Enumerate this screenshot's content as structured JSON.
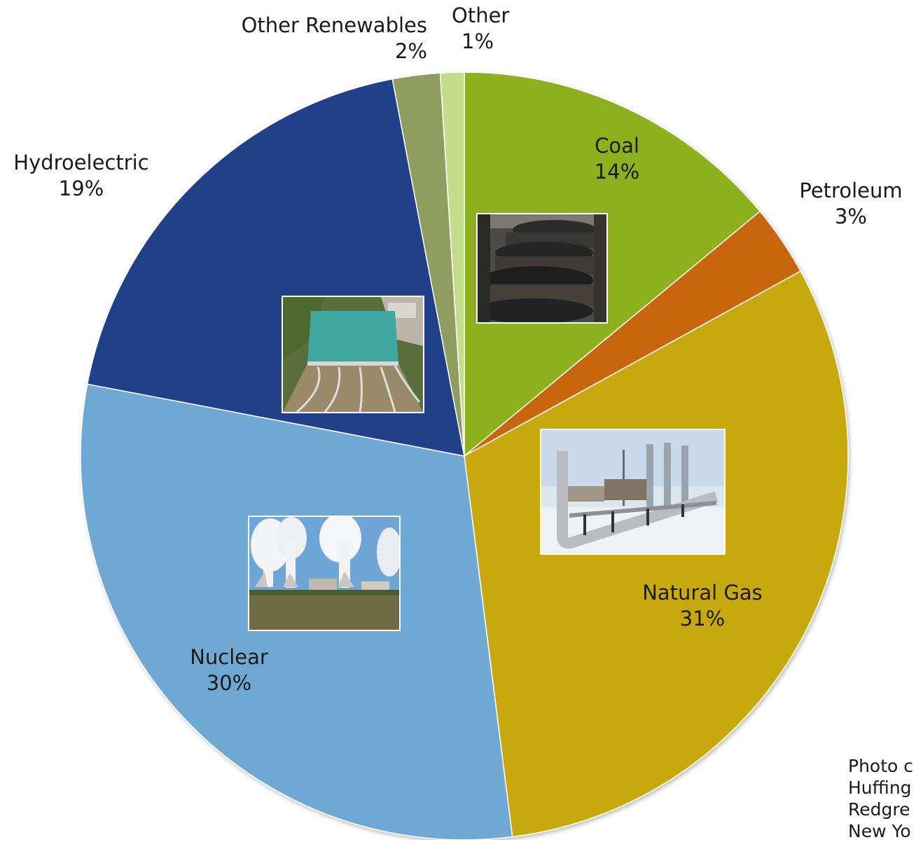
{
  "chart_data": {
    "type": "pie",
    "slices": [
      {
        "label": "Coal",
        "value": 14,
        "display": "14%",
        "color": "#8db01a"
      },
      {
        "label": "Petroleum",
        "value": 3,
        "display": "3%",
        "color": "#c8650d"
      },
      {
        "label": "Natural Gas",
        "value": 31,
        "display": "31%",
        "color": "#c8a90a"
      },
      {
        "label": "Nuclear",
        "value": 30,
        "display": "30%",
        "color": "#70a8d4"
      },
      {
        "label": "Hydroelectric",
        "value": 19,
        "display": "19%",
        "color": "#233f8a"
      },
      {
        "label": "Other Renewables",
        "value": 2,
        "display": "2%",
        "color": "#8f9e5e"
      },
      {
        "label": "Other",
        "value": 1,
        "display": "1%",
        "color": "#c4dc8c"
      }
    ],
    "start_angle_deg": 0,
    "direction": "clockwise"
  },
  "photos": [
    {
      "subject": "Coal",
      "icon": "coal-cars-photo"
    },
    {
      "subject": "Hydroelectric",
      "icon": "dam-spillway-photo"
    },
    {
      "subject": "Natural Gas",
      "icon": "gas-plant-photo"
    },
    {
      "subject": "Nuclear",
      "icon": "cooling-towers-photo"
    }
  ],
  "credit": {
    "lines": [
      "Photo c",
      "Huffing",
      "Redgre",
      "New Yo"
    ]
  }
}
